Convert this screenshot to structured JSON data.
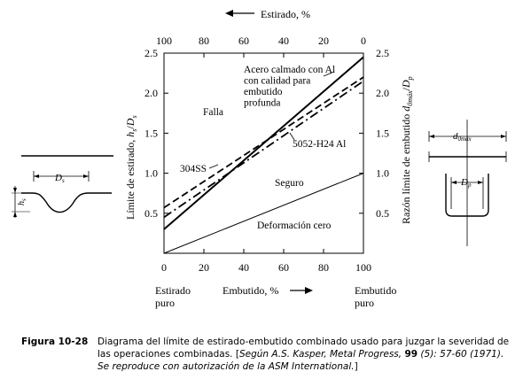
{
  "chart_data": {
    "type": "line",
    "x": [
      0,
      20,
      40,
      60,
      80,
      100
    ],
    "xlabel": "Embutido, %",
    "top_axis_label": "Estirado, %",
    "top_axis_ticks": [
      "100",
      "80",
      "60",
      "40",
      "20",
      "0"
    ],
    "ylabel": "Límite de estirado, h_s/D_s",
    "ylabel_right": "Razón límite de embutido d_0máx/D_p",
    "xlim": [
      0,
      100
    ],
    "ylim": [
      0,
      2.5
    ],
    "xticks": [
      "0",
      "20",
      "40",
      "60",
      "80",
      "100"
    ],
    "yticks": [
      "0.5",
      "1.0",
      "1.5",
      "2.0",
      "2.5"
    ],
    "yticks_right": [
      "0.5",
      "1.0",
      "1.5",
      "2.0",
      "2.5"
    ],
    "series": [
      {
        "name": "Acero calmado con Al con calidad para embutido profunda",
        "style": "solid",
        "x": [
          0,
          100
        ],
        "y": [
          0.3,
          2.45
        ]
      },
      {
        "name": "304SS",
        "style": "dashed",
        "x": [
          0,
          100
        ],
        "y": [
          0.57,
          2.2
        ]
      },
      {
        "name": "5052-H24 Al",
        "style": "dashdot",
        "x": [
          0,
          100
        ],
        "y": [
          0.45,
          2.15
        ]
      },
      {
        "name": "Deformación cero",
        "style": "thin",
        "x": [
          0,
          100
        ],
        "y": [
          0,
          1.0
        ]
      }
    ],
    "annotations": {
      "acero": [
        "Acero calmado con Al",
        "con calidad para",
        "embutido",
        "profunda"
      ],
      "falla": "Falla",
      "ss304": "304SS",
      "al5052": "5052-H24 Al",
      "seguro": "Seguro",
      "deformacion": "Deformación cero",
      "estirado_puro": [
        "Estirado",
        "puro"
      ],
      "embutido_puro": [
        "Embutido",
        "puro"
      ]
    },
    "left_sketch_label": "D_s",
    "left_sketch_h": "h_s",
    "right_sketch_top": "d_0máx",
    "right_sketch_bottom": "D_p"
  },
  "caption": {
    "label": "Figura 10-28",
    "text": "Diagrama del límite de estirado-embutido combinado usado para juzgar la severidad de las operaciones combinadas. [",
    "source": "Según A.S. Kasper, Metal Progress, ",
    "volume": "99",
    "rest": " (5): 57-60 (1971). Se reproduce con autorización de la ASM International.",
    "end": "]"
  },
  "colors": {
    "ink": "#000000",
    "background": "#ffffff"
  }
}
